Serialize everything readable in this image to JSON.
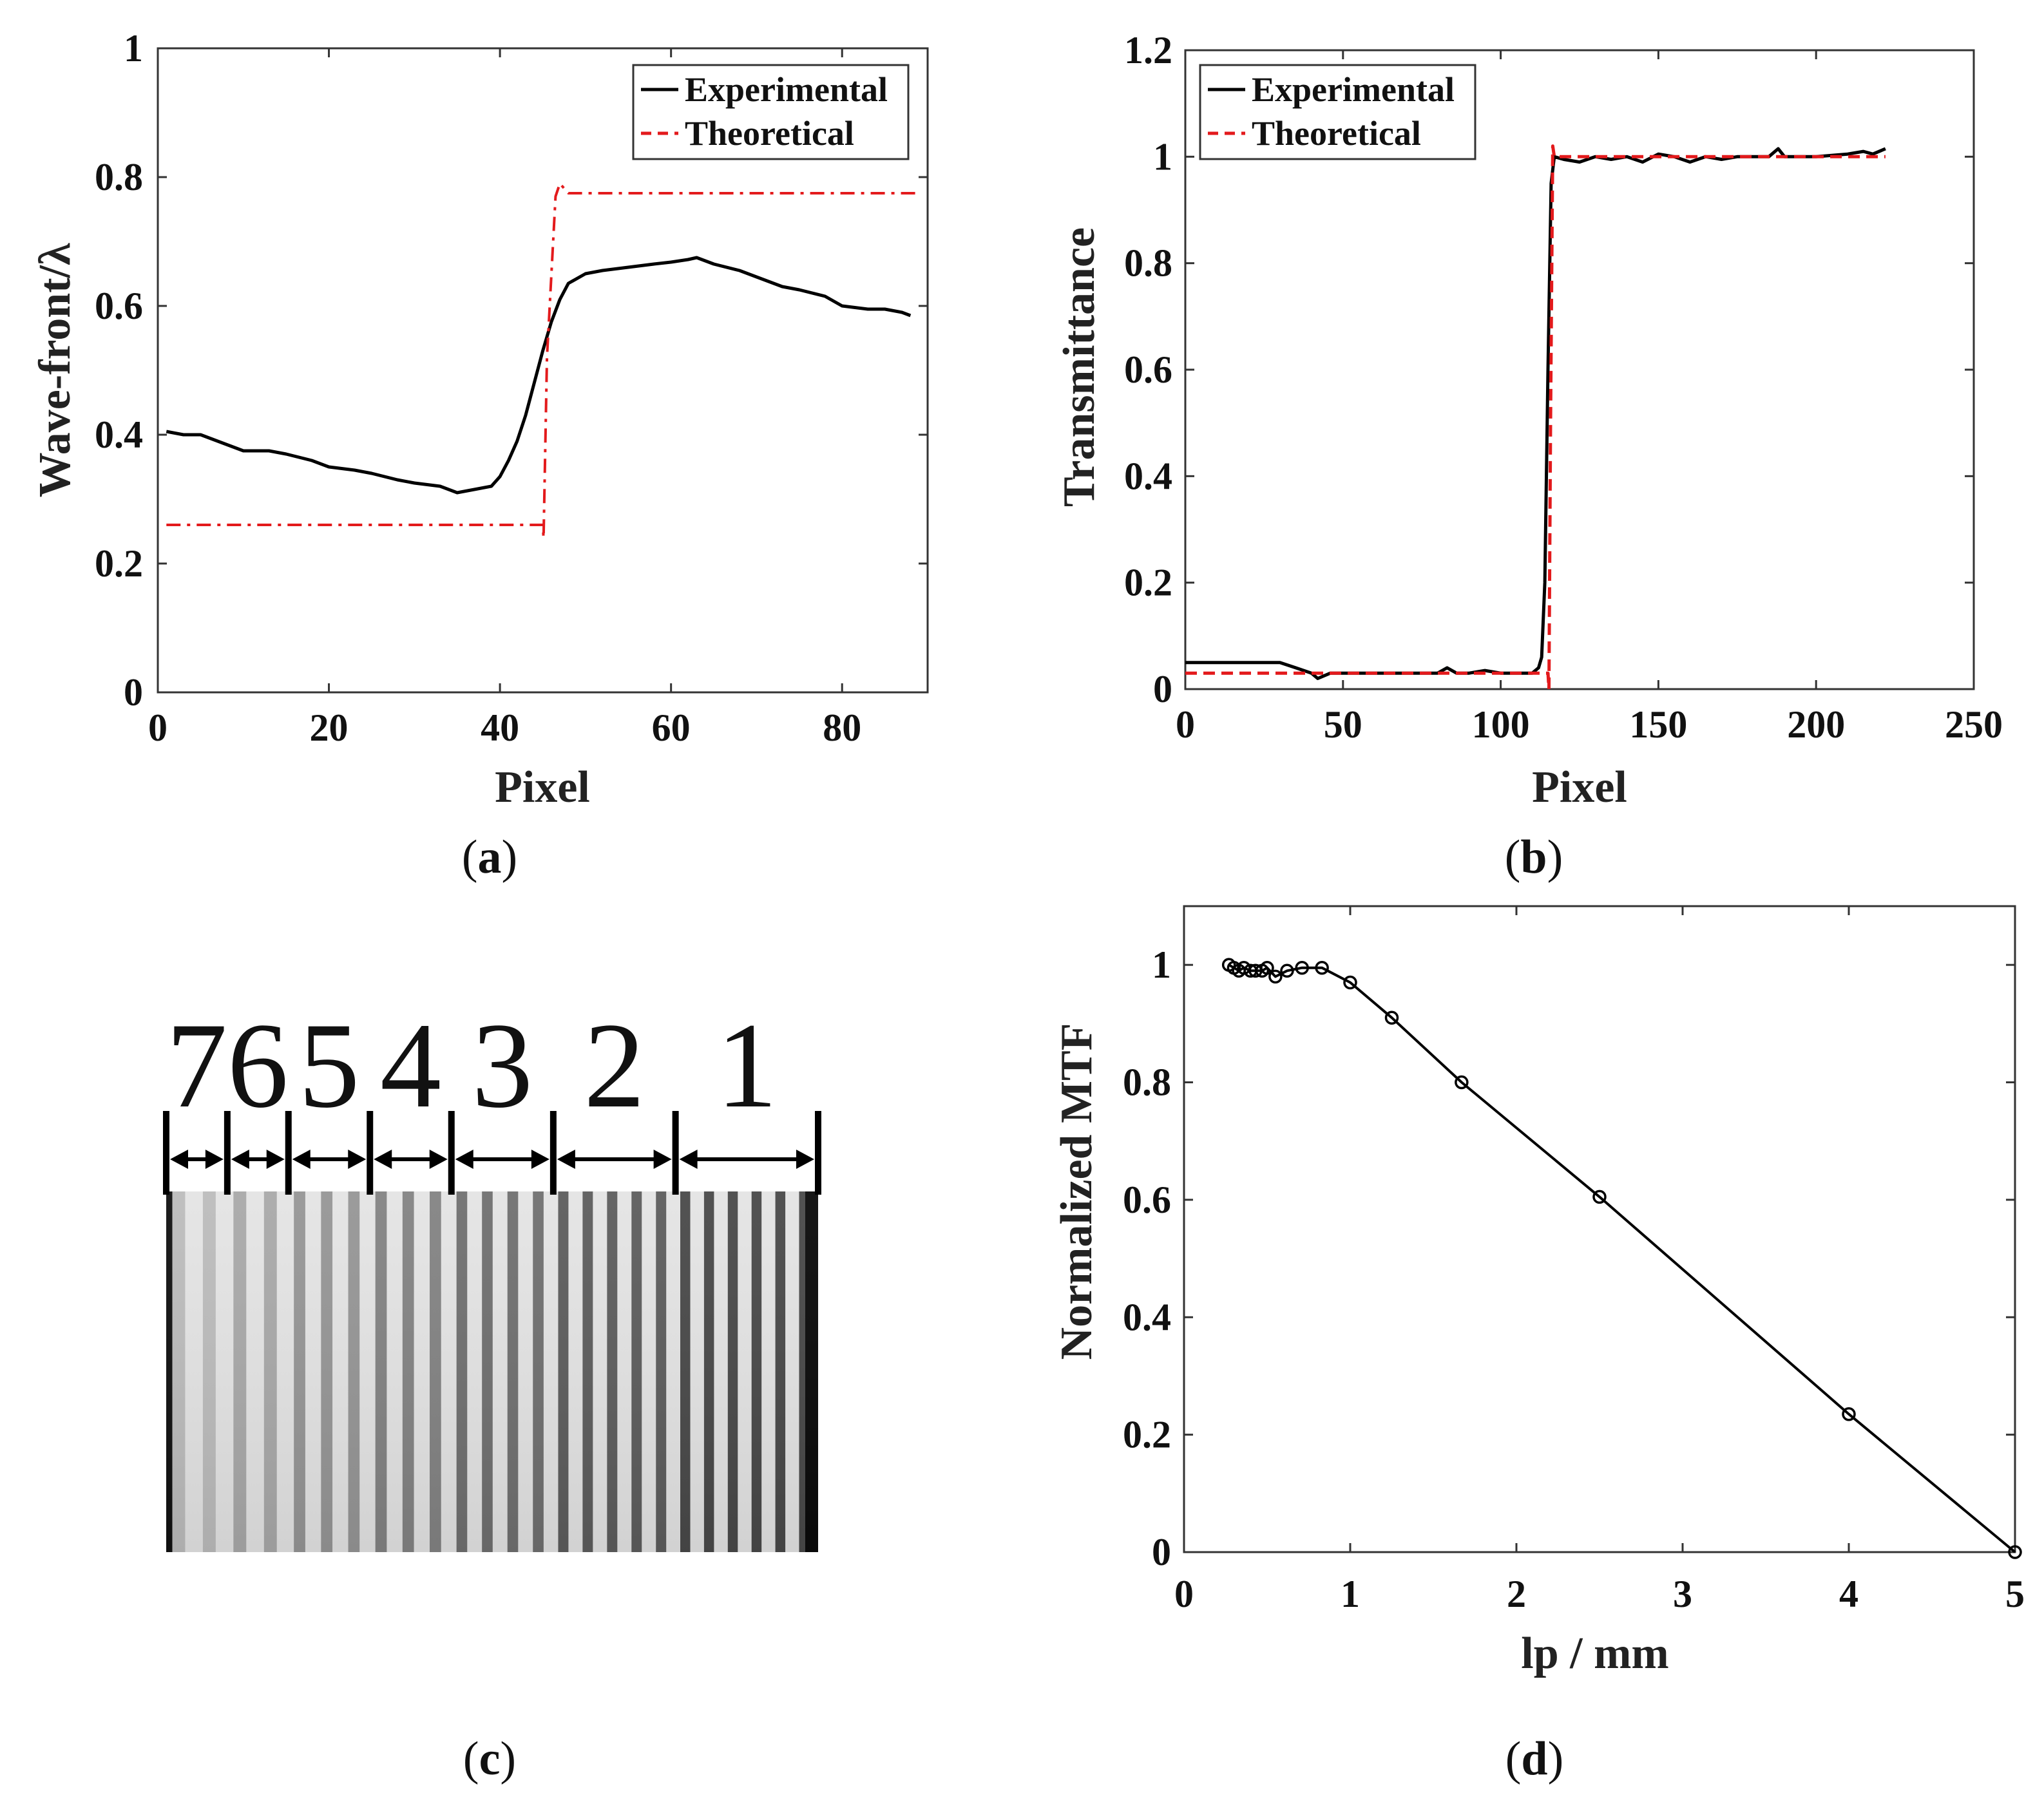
{
  "colors": {
    "experimental": "#000000",
    "theoretical": "#e31a1c",
    "axis": "#333333"
  },
  "captions": {
    "a": "a",
    "b": "b",
    "c": "c",
    "d": "d"
  },
  "chart_data": [
    {
      "id": "a",
      "type": "line",
      "xlabel": "Pixel",
      "ylabel": "Wave-front/λ",
      "xlim": [
        0,
        90
      ],
      "ylim": [
        0,
        1
      ],
      "xticks": [
        0,
        20,
        40,
        60,
        80
      ],
      "yticks": [
        0,
        0.2,
        0.4,
        0.6,
        0.8,
        1
      ],
      "ytick_labels": [
        "0",
        "0.2",
        "0.4",
        "0.6",
        "0.8",
        "1"
      ],
      "legend": {
        "position": "top-right",
        "entries": [
          "Experimental",
          "Theoretical"
        ]
      },
      "series": [
        {
          "name": "Experimental",
          "style": "solid",
          "color": "#000000",
          "x": [
            1,
            3,
            5,
            8,
            10,
            13,
            15,
            18,
            20,
            23,
            25,
            28,
            30,
            33,
            35,
            37,
            39,
            40,
            41,
            42,
            43,
            44,
            45,
            46,
            47,
            48,
            50,
            52,
            55,
            58,
            60,
            62,
            63,
            65,
            68,
            70,
            73,
            75,
            78,
            80,
            83,
            85,
            87,
            88
          ],
          "y": [
            0.405,
            0.4,
            0.4,
            0.385,
            0.375,
            0.375,
            0.37,
            0.36,
            0.35,
            0.345,
            0.34,
            0.33,
            0.325,
            0.32,
            0.31,
            0.315,
            0.32,
            0.335,
            0.36,
            0.39,
            0.43,
            0.48,
            0.53,
            0.575,
            0.61,
            0.635,
            0.65,
            0.655,
            0.66,
            0.665,
            0.668,
            0.672,
            0.675,
            0.665,
            0.655,
            0.645,
            0.63,
            0.625,
            0.615,
            0.6,
            0.595,
            0.595,
            0.59,
            0.585
          ]
        },
        {
          "name": "Theoretical",
          "style": "dashdot",
          "color": "#e31a1c",
          "x": [
            1,
            45,
            45.1,
            45.5,
            46.5,
            47,
            48,
            89
          ],
          "y": [
            0.26,
            0.26,
            0.24,
            0.52,
            0.77,
            0.79,
            0.775,
            0.775
          ]
        }
      ]
    },
    {
      "id": "b",
      "type": "line",
      "xlabel": "Pixel",
      "ylabel": "Transmittance",
      "xlim": [
        0,
        250
      ],
      "ylim": [
        0,
        1.2
      ],
      "xticks": [
        0,
        50,
        100,
        150,
        200,
        250
      ],
      "yticks": [
        0,
        0.2,
        0.4,
        0.6,
        0.8,
        1,
        1.2
      ],
      "ytick_labels": [
        "0",
        "0.2",
        "0.4",
        "0.6",
        "0.8",
        "1",
        "1.2"
      ],
      "legend": {
        "position": "top-left",
        "entries": [
          "Experimental",
          "Theoretical"
        ]
      },
      "series": [
        {
          "name": "Experimental",
          "style": "solid",
          "color": "#000000",
          "x": [
            0,
            3,
            10,
            20,
            30,
            35,
            40,
            42,
            44,
            46,
            50,
            60,
            70,
            80,
            83,
            86,
            90,
            95,
            100,
            105,
            110,
            112,
            113,
            114,
            115,
            116,
            117,
            120,
            125,
            130,
            135,
            140,
            145,
            150,
            155,
            160,
            165,
            170,
            175,
            180,
            185,
            188,
            190,
            200,
            210,
            215,
            218,
            222
          ],
          "y": [
            0.05,
            0.05,
            0.05,
            0.05,
            0.05,
            0.04,
            0.03,
            0.02,
            0.025,
            0.03,
            0.03,
            0.03,
            0.03,
            0.03,
            0.04,
            0.03,
            0.03,
            0.035,
            0.03,
            0.03,
            0.03,
            0.04,
            0.06,
            0.2,
            0.6,
            0.95,
            1.0,
            0.995,
            0.99,
            1.0,
            0.995,
            1.0,
            0.99,
            1.005,
            1.0,
            0.99,
            1.0,
            0.995,
            1.0,
            1.0,
            1.0,
            1.015,
            1.0,
            1.0,
            1.005,
            1.01,
            1.005,
            1.015
          ]
        },
        {
          "name": "Theoretical",
          "style": "dashed",
          "color": "#e31a1c",
          "x": [
            0,
            115,
            115.3,
            115.8,
            116.5,
            117,
            222
          ],
          "y": [
            0.03,
            0.03,
            0.0,
            0.5,
            1.02,
            1.0,
            1.0
          ]
        }
      ]
    },
    {
      "id": "d",
      "type": "line",
      "xlabel": "lp / mm",
      "ylabel": "Normalized MTF",
      "xlim": [
        0,
        5
      ],
      "ylim": [
        0,
        1.1
      ],
      "xticks": [
        0,
        1,
        2,
        3,
        4,
        5
      ],
      "yticks": [
        0,
        0.2,
        0.4,
        0.6,
        0.8,
        1
      ],
      "ytick_labels": [
        "0",
        "0.2",
        "0.4",
        "0.6",
        "0.8",
        "1"
      ],
      "series": [
        {
          "name": "MTF",
          "style": "solid-markers",
          "color": "#000000",
          "x": [
            0.27,
            0.3,
            0.33,
            0.36,
            0.4,
            0.43,
            0.47,
            0.5,
            0.55,
            0.62,
            0.71,
            0.83,
            1.0,
            1.25,
            1.67,
            2.5,
            4.0,
            5.0
          ],
          "y": [
            1.0,
            0.995,
            0.99,
            0.995,
            0.99,
            0.99,
            0.99,
            0.995,
            0.98,
            0.99,
            0.995,
            0.995,
            0.97,
            0.91,
            0.8,
            0.605,
            0.235,
            0.0
          ]
        }
      ]
    }
  ],
  "bar_target": {
    "group_labels": [
      "7",
      "6",
      "5",
      "4",
      "3",
      "2",
      "1"
    ],
    "periods": [
      2,
      2,
      3,
      3,
      4,
      5,
      6
    ]
  }
}
